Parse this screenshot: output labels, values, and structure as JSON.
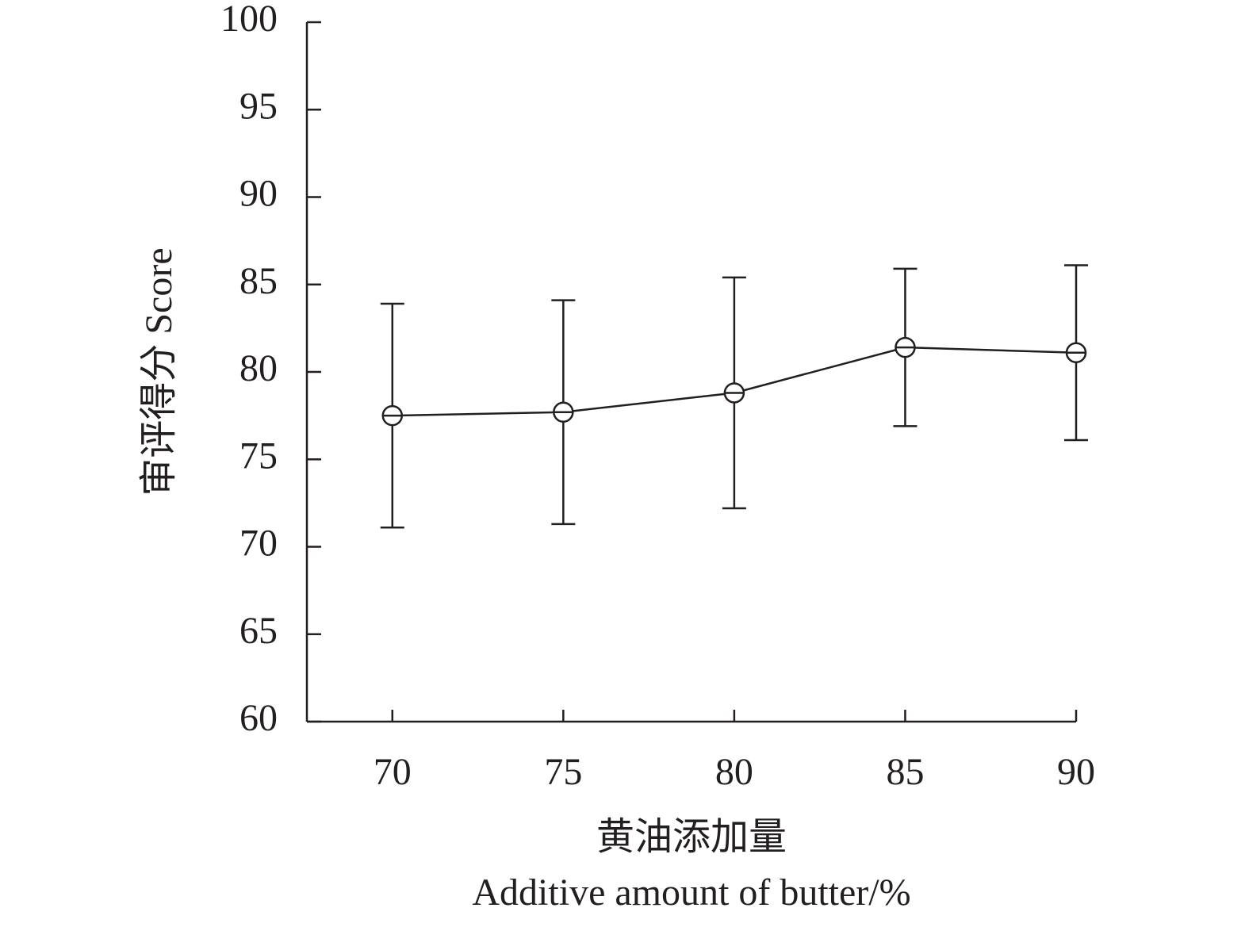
{
  "chart_data": {
    "type": "line",
    "x": [
      70,
      75,
      80,
      85,
      90
    ],
    "values": [
      77.5,
      77.7,
      78.8,
      81.4,
      81.1
    ],
    "errors": [
      6.4,
      6.4,
      6.6,
      4.5,
      5.0
    ],
    "color": "#231f20",
    "xlim": [
      67.5,
      90
    ],
    "xticks": [
      70,
      75,
      80,
      85,
      90
    ],
    "ylim": [
      60,
      100
    ],
    "yticks": [
      60,
      65,
      70,
      75,
      80,
      85,
      90,
      95,
      100
    ],
    "ylabel": "审评得分 Score",
    "xlabel": "黄油添加量",
    "xlabel_en": "Additive amount of butter/%"
  }
}
